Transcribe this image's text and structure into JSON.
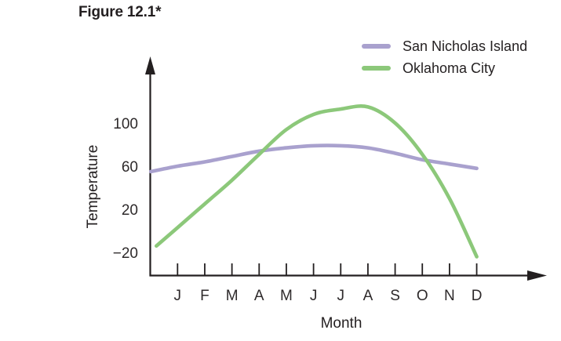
{
  "title": "Figure 12.1*",
  "legend": {
    "items": [
      {
        "label": "San Nicholas Island",
        "color": "#a9a1ce"
      },
      {
        "label": "Oklahoma City",
        "color": "#8cc87a"
      }
    ]
  },
  "chart_data": {
    "type": "line",
    "title": "Figure 12.1*",
    "xlabel": "Month",
    "ylabel": "Temperature",
    "categories": [
      "J",
      "F",
      "M",
      "A",
      "M",
      "J",
      "J",
      "A",
      "S",
      "O",
      "N",
      "D"
    ],
    "yticks": [
      100,
      60,
      20,
      -20
    ],
    "yticks_display": [
      "100",
      "60",
      "20",
      "−20"
    ],
    "grid": false,
    "legend_position": "top-right",
    "axis_color": "#231f20",
    "tick_label_color": "#2e2a2b",
    "series": [
      {
        "name": "San Nicholas Island",
        "color": "#a9a1ce",
        "x": [
          -0.98,
          0,
          1,
          2,
          3,
          4,
          5,
          6,
          7,
          8,
          9,
          10,
          11
        ],
        "values": [
          55,
          60,
          64,
          69,
          74,
          77,
          79,
          79,
          77,
          72,
          66,
          62,
          58
        ]
      },
      {
        "name": "Oklahoma City",
        "color": "#8cc87a",
        "x": [
          -0.78,
          0,
          1,
          2,
          3,
          4,
          5,
          6,
          7,
          8,
          9,
          10,
          11
        ],
        "values": [
          -14,
          3,
          25,
          47,
          71,
          94,
          108,
          113,
          115,
          100,
          71,
          30,
          -24
        ]
      }
    ]
  }
}
